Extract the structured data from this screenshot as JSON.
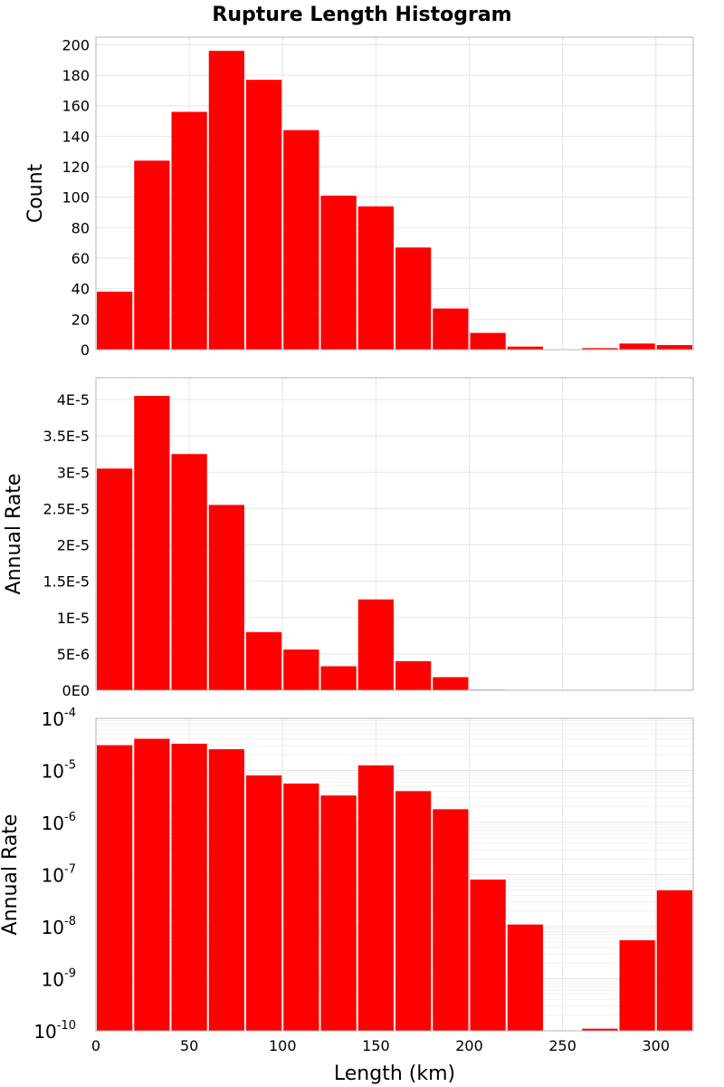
{
  "chart_data": {
    "type": "bar",
    "title": "Rupture Length Histogram",
    "bar_color": "#ff0000",
    "grid": true,
    "x": {
      "label": "Length (km)",
      "range": [
        0,
        320
      ],
      "ticks": [
        0,
        50,
        100,
        150,
        200,
        250,
        300
      ],
      "tick_labels": [
        "0",
        "50",
        "100",
        "150",
        "200",
        "250",
        "300"
      ],
      "bin_width": 20,
      "bin_centers": [
        10,
        30,
        50,
        70,
        90,
        110,
        130,
        150,
        170,
        190,
        210,
        230,
        250,
        270,
        290,
        310
      ]
    },
    "panels": [
      {
        "id": "count",
        "ylabel": "Count",
        "scale": "linear",
        "ylim": [
          0,
          205
        ],
        "yticks": [
          0,
          20,
          40,
          60,
          80,
          100,
          120,
          140,
          160,
          180,
          200
        ],
        "ytick_labels": [
          "0",
          "20",
          "40",
          "60",
          "80",
          "100",
          "120",
          "140",
          "160",
          "180",
          "200"
        ],
        "values": [
          38,
          124,
          156,
          196,
          177,
          144,
          101,
          94,
          67,
          27,
          11,
          2,
          0,
          1,
          4,
          3
        ]
      },
      {
        "id": "annual-rate-linear",
        "ylabel": "Annual Rate",
        "scale": "linear",
        "ylim": [
          0,
          4.3e-05
        ],
        "yticks": [
          0,
          5e-06,
          1e-05,
          1.5e-05,
          2e-05,
          2.5e-05,
          3e-05,
          3.5e-05,
          4e-05
        ],
        "ytick_labels": [
          "0E0",
          "5E-6",
          "1E-5",
          "1.5E-5",
          "2E-5",
          "2.5E-5",
          "3E-5",
          "3.5E-5",
          "4E-5"
        ],
        "values": [
          3.05e-05,
          4.05e-05,
          3.25e-05,
          2.55e-05,
          8e-06,
          5.6e-06,
          3.3e-06,
          1.25e-05,
          4e-06,
          1.8e-06,
          8e-08,
          1.1e-08,
          1e-10,
          1.1e-10,
          5.5e-09,
          5e-08
        ]
      },
      {
        "id": "annual-rate-log",
        "ylabel": "Annual Rate",
        "scale": "log",
        "ylim": [
          1e-10,
          0.0001
        ],
        "ytick_exponents": [
          -10,
          -9,
          -8,
          -7,
          -6,
          -5,
          -4
        ],
        "ytick_base": "10",
        "values": [
          3.05e-05,
          4.05e-05,
          3.25e-05,
          2.55e-05,
          8e-06,
          5.6e-06,
          3.3e-06,
          1.25e-05,
          4e-06,
          1.8e-06,
          8e-08,
          1.1e-08,
          1e-10,
          1.1e-10,
          5.5e-09,
          5e-08
        ]
      }
    ]
  }
}
